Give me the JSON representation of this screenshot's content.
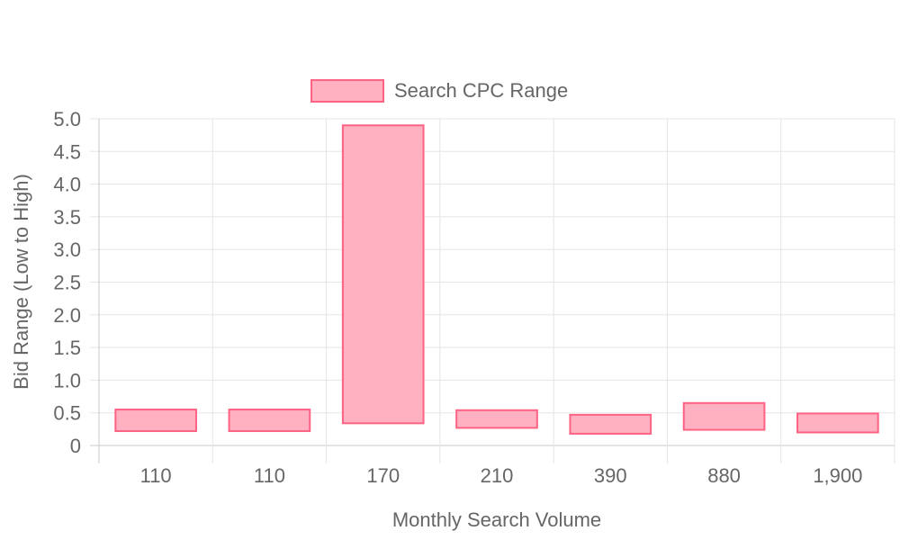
{
  "chart_data": {
    "type": "bar",
    "subtype": "floating-range",
    "categories": [
      "110",
      "110",
      "170",
      "210",
      "390",
      "880",
      "1,900"
    ],
    "series": [
      {
        "name": "Search CPC Range",
        "ranges": [
          [
            0.22,
            0.55
          ],
          [
            0.22,
            0.55
          ],
          [
            0.34,
            4.9
          ],
          [
            0.27,
            0.54
          ],
          [
            0.18,
            0.47
          ],
          [
            0.24,
            0.65
          ],
          [
            0.2,
            0.49
          ]
        ]
      }
    ],
    "xlabel": "Monthly Search Volume",
    "ylabel": "Bid Range (Low to High)",
    "ylim": [
      0,
      5.0
    ],
    "yticks": [
      "0",
      "0.5",
      "1.0",
      "1.5",
      "2.0",
      "2.5",
      "3.0",
      "3.5",
      "4.0",
      "4.5",
      "5.0"
    ],
    "grid": true,
    "legend_position": "top-center",
    "colors": {
      "bar_fill": "#ffb1c1",
      "bar_border": "#ff6384",
      "grid": "#e5e5e5",
      "text": "#666666"
    }
  }
}
